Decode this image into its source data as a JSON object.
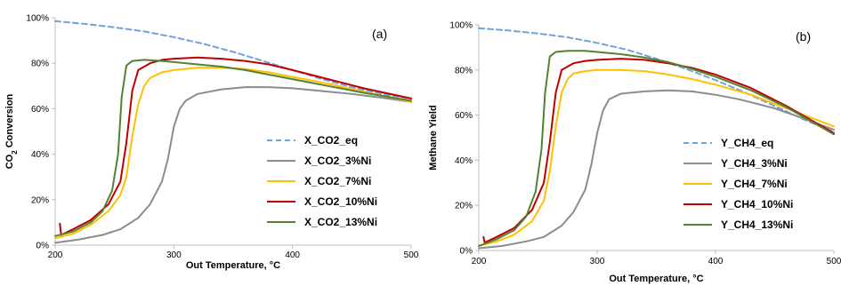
{
  "colors": {
    "eq": "#6fa3dc",
    "ni3": "#8c8c8c",
    "ni7": "#ffc000",
    "ni10": "#c00000",
    "ni13": "#548235"
  },
  "chart_data": [
    {
      "type": "line",
      "panel_label": "(a)",
      "xlabel": "Out Temperature, °C",
      "ylabel_main": "CO",
      "ylabel_sub": "2",
      "ylabel_rest": " Conversion",
      "xlim": [
        200,
        500
      ],
      "ylim": [
        0,
        100
      ],
      "x_ticks": [
        "200",
        "300",
        "400",
        "500"
      ],
      "y_ticks": [
        "0%",
        "20%",
        "40%",
        "60%",
        "80%",
        "100%"
      ],
      "legend_position": "bottom-right",
      "series": [
        {
          "name": "X_CO2_eq",
          "color_key": "eq",
          "dashed": true,
          "x": [
            200,
            225,
            250,
            275,
            300,
            325,
            350,
            375,
            400,
            425,
            450,
            475,
            500
          ],
          "y": [
            98.5,
            97.3,
            95.8,
            94.0,
            91.5,
            88.5,
            85.0,
            81.0,
            77.0,
            73.0,
            69.5,
            66.5,
            64.5
          ]
        },
        {
          "name": "X_CO2_3%Ni",
          "color_key": "ni3",
          "dashed": false,
          "x": [
            200,
            220,
            240,
            255,
            270,
            280,
            290,
            295,
            300,
            305,
            310,
            320,
            340,
            360,
            380,
            400,
            420,
            450,
            480,
            500
          ],
          "y": [
            1,
            2.5,
            4.5,
            7,
            12,
            18,
            28,
            38,
            52,
            60,
            63.5,
            66.5,
            68.5,
            69.5,
            69.5,
            69,
            68,
            66.5,
            64.5,
            63
          ]
        },
        {
          "name": "X_CO2_7%Ni",
          "color_key": "ni7",
          "dashed": false,
          "x": [
            200,
            215,
            230,
            245,
            255,
            260,
            265,
            270,
            275,
            280,
            290,
            300,
            320,
            340,
            360,
            380,
            400,
            430,
            460,
            500
          ],
          "y": [
            3,
            5,
            9,
            15,
            22,
            30,
            48,
            62,
            70,
            73.5,
            76,
            77,
            78,
            78,
            77.5,
            76,
            74,
            71,
            67.5,
            63
          ]
        },
        {
          "name": "X_CO2_10%Ni",
          "color_key": "ni10",
          "dashed": false,
          "x": [
            204,
            205,
            215,
            230,
            245,
            255,
            260,
            265,
            270,
            280,
            290,
            300,
            320,
            340,
            360,
            380,
            400,
            430,
            460,
            500
          ],
          "y": [
            9.5,
            4.5,
            7,
            11,
            18,
            28,
            45,
            68,
            77,
            80,
            81.5,
            82,
            82.5,
            82,
            81,
            79.5,
            77,
            73,
            69,
            64.5
          ]
        },
        {
          "name": "X_CO2_13%Ni",
          "color_key": "ni13",
          "dashed": false,
          "x": [
            200,
            215,
            230,
            240,
            248,
            253,
            256,
            260,
            265,
            275,
            290,
            300,
            320,
            340,
            360,
            380,
            400,
            430,
            460,
            500
          ],
          "y": [
            4,
            6,
            10,
            15,
            24,
            40,
            65,
            79,
            81,
            81.5,
            81,
            80.5,
            79.5,
            78.5,
            77,
            75,
            73,
            70,
            67,
            63.5
          ]
        }
      ]
    },
    {
      "type": "line",
      "panel_label": "(b)",
      "xlabel": "Out Temperature, °C",
      "ylabel_main": "Methane Yield",
      "ylabel_sub": "",
      "ylabel_rest": "",
      "xlim": [
        200,
        500
      ],
      "ylim": [
        0,
        100
      ],
      "x_ticks": [
        "200",
        "300",
        "400",
        "500"
      ],
      "y_ticks": [
        "0%",
        "20%",
        "40%",
        "60%",
        "80%",
        "100%"
      ],
      "legend_position": "bottom-right",
      "series": [
        {
          "name": "Y_CH4_eq",
          "color_key": "eq",
          "dashed": true,
          "x": [
            200,
            225,
            250,
            275,
            300,
            325,
            350,
            375,
            400,
            425,
            450,
            475,
            500
          ],
          "y": [
            98.5,
            97.5,
            96.2,
            94.5,
            92,
            89,
            85,
            80.5,
            75.5,
            70,
            64,
            58,
            52.5
          ]
        },
        {
          "name": "Y_CH4_3%Ni",
          "color_key": "ni3",
          "dashed": false,
          "x": [
            200,
            220,
            240,
            255,
            270,
            280,
            290,
            295,
            300,
            305,
            310,
            320,
            340,
            360,
            380,
            400,
            420,
            450,
            480,
            500
          ],
          "y": [
            1,
            2,
            4,
            6,
            11,
            17,
            27,
            38,
            52,
            62,
            67,
            69.5,
            70.5,
            71,
            70.5,
            69,
            67,
            63,
            57.5,
            53.5
          ]
        },
        {
          "name": "Y_CH4_7%Ni",
          "color_key": "ni7",
          "dashed": false,
          "x": [
            200,
            215,
            230,
            245,
            255,
            260,
            265,
            270,
            275,
            280,
            290,
            300,
            320,
            340,
            360,
            380,
            400,
            430,
            460,
            500
          ],
          "y": [
            2,
            4,
            7,
            13,
            22,
            35,
            55,
            70,
            76,
            78.5,
            79.5,
            80,
            80,
            79.5,
            78,
            76,
            73.5,
            69,
            63,
            55
          ]
        },
        {
          "name": "Y_CH4_10%Ni",
          "color_key": "ni10",
          "dashed": false,
          "x": [
            204,
            205,
            215,
            230,
            245,
            255,
            260,
            265,
            270,
            280,
            290,
            300,
            320,
            340,
            360,
            380,
            400,
            430,
            460,
            500
          ],
          "y": [
            6,
            3.5,
            6,
            10,
            18,
            30,
            48,
            70,
            80,
            83,
            84,
            84.5,
            85,
            84.5,
            83,
            81,
            78,
            72,
            64,
            52
          ]
        },
        {
          "name": "Y_CH4_13%Ni",
          "color_key": "ni13",
          "dashed": false,
          "x": [
            200,
            215,
            230,
            240,
            248,
            253,
            256,
            260,
            265,
            275,
            290,
            300,
            320,
            340,
            360,
            380,
            400,
            430,
            460,
            500
          ],
          "y": [
            2,
            5,
            9,
            15,
            26,
            45,
            70,
            86,
            88,
            88.5,
            88.5,
            88,
            87,
            85.5,
            83.5,
            80.5,
            77,
            71,
            63.5,
            51.5
          ]
        }
      ]
    }
  ]
}
